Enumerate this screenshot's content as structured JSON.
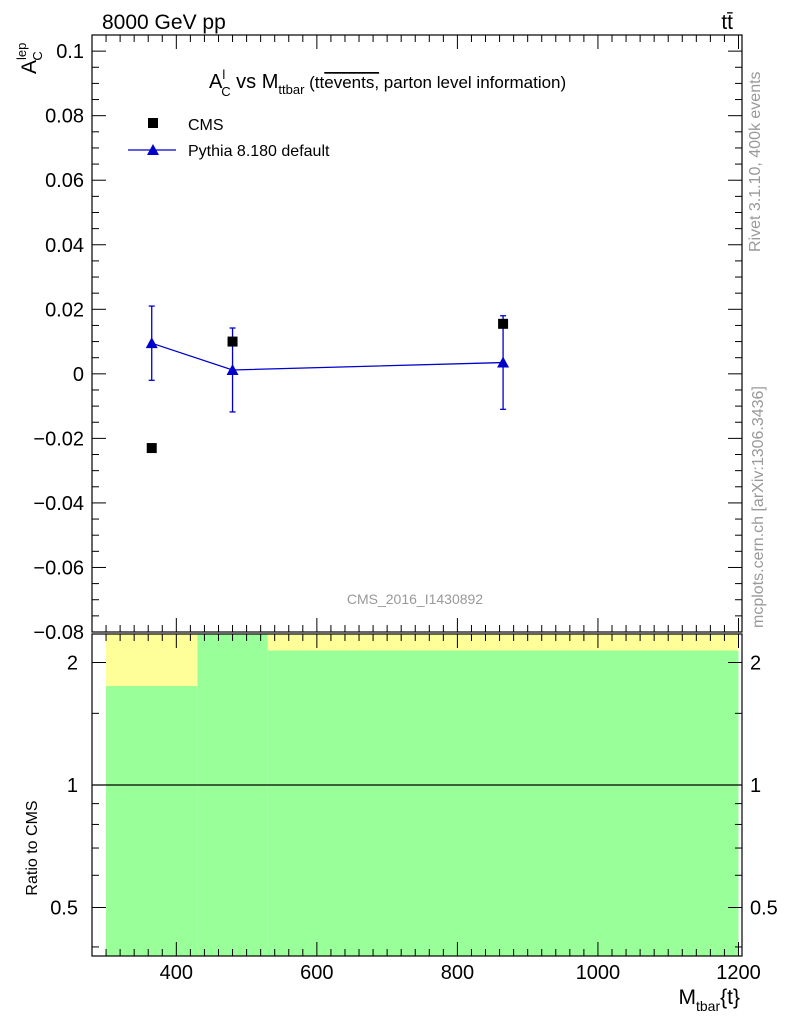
{
  "header": {
    "left": "8000 GeV pp",
    "right": "tt̄"
  },
  "side": {
    "rivet": "Rivet 3.1.10,  400k events",
    "source": "mcplots.cern.ch [arXiv:1306.3436]"
  },
  "watermark": "CMS_2016_I1430892",
  "chart_data": [
    {
      "type": "scatter",
      "title": {
        "a": "A",
        "a_sup": "l",
        "a_sub": "C",
        "vs": " vs M",
        "m_sub": "ttbar",
        "paren_open": " (tt",
        "overline": "events,",
        "rest": " parton level information)"
      },
      "ylabel": {
        "main": "A",
        "sup": "lep",
        "sub": "C"
      },
      "ylim": [
        -0.08,
        0.105
      ],
      "y_ticks": [
        {
          "v": 0.1,
          "label": "0.1"
        },
        {
          "v": 0.08,
          "label": "0.08"
        },
        {
          "v": 0.06,
          "label": "0.06"
        },
        {
          "v": 0.04,
          "label": "0.04"
        },
        {
          "v": 0.02,
          "label": "0.02"
        },
        {
          "v": 0,
          "label": "0"
        },
        {
          "v": -0.02,
          "label": "−0.02"
        },
        {
          "v": -0.04,
          "label": "−0.04"
        },
        {
          "v": -0.06,
          "label": "−0.06"
        },
        {
          "v": -0.08,
          "label": "−0.08"
        }
      ],
      "legend": {
        "placement": "top-left",
        "entries": [
          "CMS",
          "Pythia 8.180 default"
        ]
      },
      "series": [
        {
          "name": "CMS",
          "marker": "square",
          "color": "#000000",
          "points": [
            {
              "x": 365,
              "y": -0.023
            },
            {
              "x": 480,
              "y": 0.01
            },
            {
              "x": 865,
              "y": 0.0155
            }
          ]
        },
        {
          "name": "Pythia 8.180 default",
          "marker": "triangle",
          "color": "#0000cc",
          "points": [
            {
              "x": 365,
              "y": 0.0095,
              "err": 0.0115
            },
            {
              "x": 480,
              "y": 0.0012,
              "err": 0.013
            },
            {
              "x": 865,
              "y": 0.0035,
              "err": 0.0145
            }
          ]
        }
      ]
    },
    {
      "type": "area",
      "ylabel": "Ratio to CMS",
      "xlabel": {
        "main": "M",
        "sub": "tbar",
        "suffix": "{t}"
      },
      "xlim": [
        280,
        1205
      ],
      "ylim": [
        0.38,
        2.35
      ],
      "y_scale": "log",
      "x_ticks": [
        {
          "v": 400,
          "label": "400"
        },
        {
          "v": 600,
          "label": "600"
        },
        {
          "v": 800,
          "label": "800"
        },
        {
          "v": 1000,
          "label": "1000"
        },
        {
          "v": 1200,
          "label": "1200"
        }
      ],
      "y_ticks": [
        {
          "v": 2,
          "label": "2"
        },
        {
          "v": 1,
          "label": "1"
        },
        {
          "v": 0.5,
          "label": "0.5"
        }
      ],
      "reference_line": 1,
      "bands": [
        {
          "color_outer": "#ffff99",
          "color_inner": "#99ff99",
          "bins": [
            {
              "x0": 300,
              "x1": 430,
              "outer_lo": 0.38,
              "outer_hi": 2.35,
              "inner_lo": 0.38,
              "inner_hi": 1.75
            },
            {
              "x0": 430,
              "x1": 530,
              "outer_lo": 0.38,
              "outer_hi": 2.35,
              "inner_lo": 0.38,
              "inner_hi": 2.35
            },
            {
              "x0": 530,
              "x1": 1200,
              "outer_lo": 0.38,
              "outer_hi": 2.35,
              "inner_lo": 0.38,
              "inner_hi": 2.14
            }
          ]
        }
      ]
    }
  ]
}
